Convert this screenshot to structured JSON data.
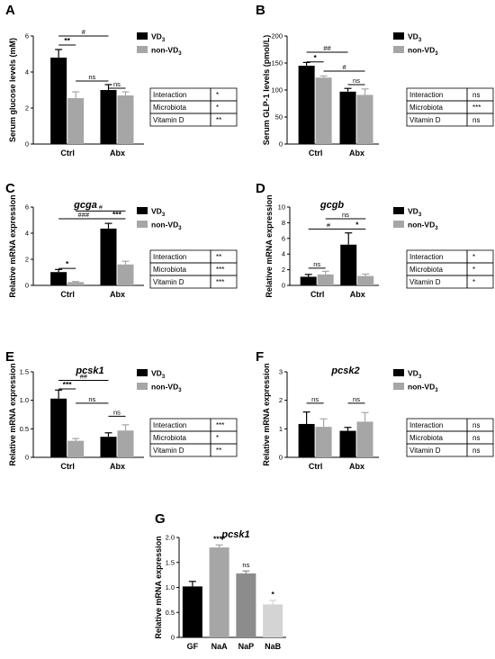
{
  "colors": {
    "vd3": "#000000",
    "non_vd3": "#a6a6a6",
    "gf": "#000000",
    "naa": "#a6a6a6",
    "nap": "#8c8c8c",
    "nab": "#d4d4d4"
  },
  "chart_data": [
    {
      "id": "A",
      "type": "bar",
      "panel_label": "A",
      "title": "",
      "ylabel": "Serum glucose levels (mM)",
      "ylim": [
        0,
        6
      ],
      "yticks": [
        "0",
        "2",
        "4",
        "6"
      ],
      "categories": [
        "Ctrl",
        "Abx"
      ],
      "series": [
        {
          "name": "VD3",
          "values": [
            4.8,
            3.0
          ],
          "errors": [
            0.45,
            0.3
          ]
        },
        {
          "name": "non-VD3",
          "values": [
            2.55,
            2.7
          ],
          "errors": [
            0.35,
            0.2
          ]
        }
      ],
      "annotations": [
        {
          "text": "**",
          "kind": "within",
          "group": 0,
          "level": 5.5
        },
        {
          "text": "#",
          "kind": "series",
          "series": 0,
          "level": 6.0
        },
        {
          "text": "ns",
          "kind": "cross",
          "level": 3.5
        },
        {
          "text": "ns",
          "kind": "within",
          "group": 1,
          "level": 3.1
        }
      ],
      "stats": [
        {
          "term": "Interaction",
          "value": "*"
        },
        {
          "term": "Microbiota",
          "value": "*"
        },
        {
          "term": "Vitamin D",
          "value": "**"
        }
      ]
    },
    {
      "id": "B",
      "type": "bar",
      "panel_label": "B",
      "title": "",
      "ylabel": "Serum GLP-1 levels (pmol/L)",
      "ylim": [
        0,
        200
      ],
      "yticks": [
        "0",
        "50",
        "100",
        "150",
        "200"
      ],
      "categories": [
        "Ctrl",
        "Abx"
      ],
      "series": [
        {
          "name": "VD3",
          "values": [
            145,
            97
          ],
          "errors": [
            6,
            6
          ]
        },
        {
          "name": "non-VD3",
          "values": [
            123,
            91
          ],
          "errors": [
            3,
            11
          ]
        }
      ],
      "annotations": [
        {
          "text": "*",
          "kind": "within",
          "group": 0,
          "level": 152
        },
        {
          "text": "##",
          "kind": "series",
          "series": 0,
          "level": 170
        },
        {
          "text": "#",
          "kind": "series",
          "series": 1,
          "level": 135
        },
        {
          "text": "ns",
          "kind": "within",
          "group": 1,
          "level": 110
        }
      ],
      "stats": [
        {
          "term": "Interaction",
          "value": "ns"
        },
        {
          "term": "Microbiota",
          "value": "***"
        },
        {
          "term": "Vitamin D",
          "value": "ns"
        }
      ]
    },
    {
      "id": "C",
      "type": "bar",
      "panel_label": "C",
      "title": "gcga",
      "ylabel": "Relative mRNA expression",
      "ylim": [
        0,
        6
      ],
      "yticks": [
        "0",
        "2",
        "4",
        "6"
      ],
      "categories": [
        "Ctrl",
        "Abx"
      ],
      "series": [
        {
          "name": "VD3",
          "values": [
            1.02,
            4.35
          ],
          "errors": [
            0.2,
            0.4
          ]
        },
        {
          "name": "non-VD3",
          "values": [
            0.25,
            1.6
          ],
          "errors": [
            0.05,
            0.25
          ]
        }
      ],
      "annotations": [
        {
          "text": "*",
          "kind": "within",
          "group": 0,
          "level": 1.3
        },
        {
          "text": "#",
          "kind": "series",
          "series": 1,
          "level": 5.7
        },
        {
          "text": "###",
          "kind": "series",
          "series": 0,
          "level": 5.1
        },
        {
          "text": "***",
          "kind": "within",
          "group": 1,
          "level": 5.1
        }
      ],
      "stats": [
        {
          "term": "Interaction",
          "value": "**"
        },
        {
          "term": "Microbiota",
          "value": "***"
        },
        {
          "term": "Vitamin D",
          "value": "***"
        }
      ]
    },
    {
      "id": "D",
      "type": "bar",
      "panel_label": "D",
      "title": "gcgb",
      "ylabel": "Relative mRNA expression",
      "ylim": [
        0,
        10
      ],
      "yticks": [
        "0",
        "2",
        "4",
        "6",
        "8",
        "10"
      ],
      "categories": [
        "Ctrl",
        "Abx"
      ],
      "series": [
        {
          "name": "VD3",
          "values": [
            1.1,
            5.2
          ],
          "errors": [
            0.3,
            1.5
          ]
        },
        {
          "name": "non-VD3",
          "values": [
            1.4,
            1.2
          ],
          "errors": [
            0.4,
            0.25
          ]
        }
      ],
      "annotations": [
        {
          "text": "ns",
          "kind": "within",
          "group": 0,
          "level": 2.2
        },
        {
          "text": "#",
          "kind": "series",
          "series": 0,
          "level": 7.2
        },
        {
          "text": "ns",
          "kind": "series",
          "series": 1,
          "level": 8.5
        },
        {
          "text": "*",
          "kind": "within",
          "group": 1,
          "level": 7.2
        }
      ],
      "stats": [
        {
          "term": "Interaction",
          "value": "*"
        },
        {
          "term": "Microbiota",
          "value": "*"
        },
        {
          "term": "Vitamin D",
          "value": "*"
        }
      ]
    },
    {
      "id": "E",
      "type": "bar",
      "panel_label": "E",
      "title": "pcsk1",
      "ylabel": "Relative mRNA expression",
      "ylim": [
        0,
        1.5
      ],
      "yticks": [
        "0",
        "0.5",
        "1.0",
        "1.5"
      ],
      "categories": [
        "Ctrl",
        "Abx"
      ],
      "series": [
        {
          "name": "VD3",
          "values": [
            1.03,
            0.36
          ],
          "errors": [
            0.15,
            0.07
          ]
        },
        {
          "name": "non-VD3",
          "values": [
            0.29,
            0.47
          ],
          "errors": [
            0.04,
            0.1
          ]
        }
      ],
      "annotations": [
        {
          "text": "***",
          "kind": "within",
          "group": 0,
          "level": 1.2
        },
        {
          "text": "##",
          "kind": "series",
          "series": 0,
          "level": 1.35
        },
        {
          "text": "ns",
          "kind": "cross",
          "level": 0.95
        },
        {
          "text": "ns",
          "kind": "within",
          "group": 1,
          "level": 0.72
        }
      ],
      "stats": [
        {
          "term": "Interaction",
          "value": "***"
        },
        {
          "term": "Microbiota",
          "value": "*"
        },
        {
          "term": "Vitamin D",
          "value": "**"
        }
      ]
    },
    {
      "id": "F",
      "type": "bar",
      "panel_label": "F",
      "title": "pcsk2",
      "ylabel": "Relative mRNA expression",
      "ylim": [
        0,
        3
      ],
      "yticks": [
        "0",
        "1",
        "2",
        "3"
      ],
      "categories": [
        "Ctrl",
        "Abx"
      ],
      "series": [
        {
          "name": "VD3",
          "values": [
            1.17,
            0.93
          ],
          "errors": [
            0.42,
            0.12
          ]
        },
        {
          "name": "non-VD3",
          "values": [
            1.07,
            1.25
          ],
          "errors": [
            0.28,
            0.32
          ]
        }
      ],
      "annotations": [
        {
          "text": "ns",
          "kind": "within",
          "group": 0,
          "level": 1.9
        },
        {
          "text": "ns",
          "kind": "within",
          "group": 1,
          "level": 1.9
        }
      ],
      "stats": [
        {
          "term": "Interaction",
          "value": "ns"
        },
        {
          "term": "Microbiota",
          "value": "ns"
        },
        {
          "term": "Vitamin D",
          "value": "ns"
        }
      ]
    },
    {
      "id": "G",
      "type": "bar",
      "panel_label": "G",
      "title": "pcsk1",
      "ylabel": "Relative mRNA expression",
      "ylim": [
        0,
        2.0
      ],
      "yticks": [
        "0",
        "0.5",
        "1.0",
        "1.5",
        "2.0"
      ],
      "categories": [
        "GF",
        "NaA",
        "NaP",
        "NaB"
      ],
      "values": [
        1.02,
        1.8,
        1.28,
        0.66
      ],
      "errors": [
        0.1,
        0.05,
        0.05,
        0.08
      ],
      "labels": [
        "",
        "****",
        "ns",
        "*"
      ]
    }
  ]
}
